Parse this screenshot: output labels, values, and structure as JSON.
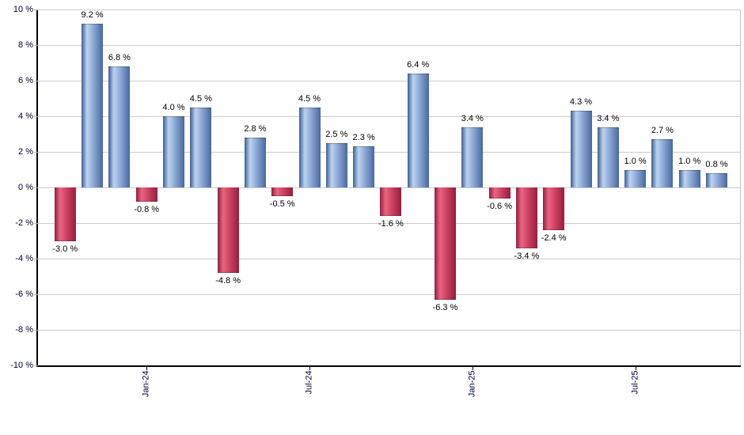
{
  "chart_data": {
    "type": "bar",
    "title": "",
    "xlabel": "",
    "ylabel": "",
    "ylim": [
      -10,
      10
    ],
    "grid_step": 2,
    "grid": true,
    "legend": null,
    "values": [
      -3.0,
      9.2,
      6.8,
      -0.8,
      4.0,
      4.5,
      -4.8,
      2.8,
      -0.5,
      4.5,
      2.5,
      2.3,
      -1.6,
      6.4,
      -6.3,
      3.4,
      -0.6,
      -3.4,
      -2.4,
      4.3,
      3.4,
      1.0,
      2.7,
      1.0,
      0.8
    ],
    "bar_value_labels": [
      "-3.0 %",
      "9.2 %",
      "6.8 %",
      "-0.8 %",
      "4.0 %",
      "4.5 %",
      "-4.8 %",
      "2.8 %",
      "-0.5 %",
      "4.5 %",
      "2.5 %",
      "2.3 %",
      "-1.6 %",
      "6.4 %",
      "-6.3 %",
      "3.4 %",
      "-0.6 %",
      "-3.4 %",
      "-2.4 %",
      "4.3 %",
      "3.4 %",
      "1.0 %",
      "2.7 %",
      "1.0 %",
      "0.8 %"
    ],
    "y_ticks": [
      {
        "value": 10,
        "label": "10 %"
      },
      {
        "value": 8,
        "label": "8 %"
      },
      {
        "value": 6,
        "label": "6 %"
      },
      {
        "value": 4,
        "label": "4 %"
      },
      {
        "value": 2,
        "label": "2 %"
      },
      {
        "value": 0,
        "label": "0 %"
      },
      {
        "value": -2,
        "label": "-2 %"
      },
      {
        "value": -4,
        "label": "-4 %"
      },
      {
        "value": -6,
        "label": "-6 %"
      },
      {
        "value": -8,
        "label": "-8 %"
      },
      {
        "value": -10,
        "label": "-10 %"
      }
    ],
    "x_ticks": [
      {
        "bar_index": 3,
        "label": "Jan-24"
      },
      {
        "bar_index": 9,
        "label": "Jul-24"
      },
      {
        "bar_index": 15,
        "label": "Jan-25"
      },
      {
        "bar_index": 21,
        "label": "Jul-25"
      }
    ],
    "colors": {
      "positive_bar": {
        "edge_left": "#3d5e92",
        "highlight": "#bdd3f1",
        "body": "#7e9ccb",
        "edge_right": "#4a689c"
      },
      "negative_bar": {
        "edge_left": "#8e1f3e",
        "highlight": "#ea6583",
        "body": "#c43a5b",
        "edge_right": "#93203f"
      },
      "gridline": "#cccccc",
      "axis": "#000000",
      "tick_label": "#000033",
      "value_label": "#000000",
      "background": "#ffffff"
    }
  }
}
